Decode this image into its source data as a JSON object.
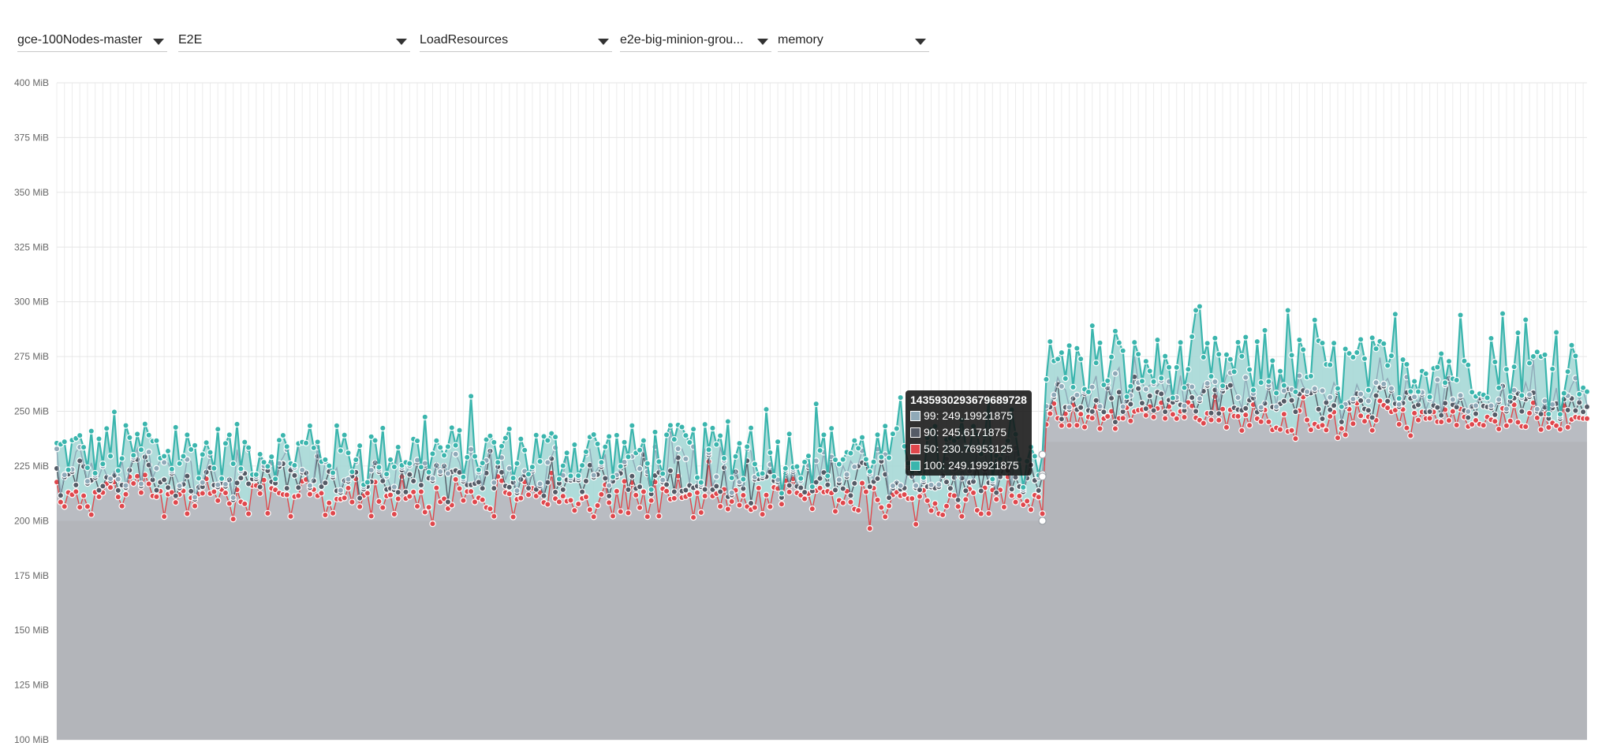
{
  "filters": [
    {
      "value": "gce-100Nodes-master"
    },
    {
      "value": "E2E"
    },
    {
      "value": "LoadResources"
    },
    {
      "value": "e2e-big-minion-grou..."
    },
    {
      "value": "memory"
    }
  ],
  "tooltip": {
    "title": "1435930293679689728",
    "rows": [
      {
        "label": "99: 249.19921875",
        "color": "#8fa9b8"
      },
      {
        "label": "90: 245.6171875",
        "color": "#555b66"
      },
      {
        "label": "50: 230.76953125",
        "color": "#e0474c"
      },
      {
        "label": "100: 249.19921875",
        "color": "#3ab5ad"
      }
    ]
  },
  "chart_data": {
    "type": "line",
    "y_unit": "MiB",
    "ylim": [
      100,
      400
    ],
    "yticks": [
      "100 MiB",
      "125 MiB",
      "150 MiB",
      "175 MiB",
      "200 MiB",
      "225 MiB",
      "250 MiB",
      "275 MiB",
      "300 MiB",
      "325 MiB",
      "350 MiB",
      "375 MiB",
      "400 MiB"
    ],
    "grid": true,
    "num_points": 400,
    "step_index": 258,
    "series": [
      {
        "name": "100",
        "color": "#3ab5ad",
        "segments": [
          {
            "from": 0,
            "to": 257,
            "range": [
              212,
              258
            ]
          },
          {
            "from": 258,
            "to": 399,
            "range": [
              248,
              300
            ]
          }
        ]
      },
      {
        "name": "99",
        "color": "#8fa9b8",
        "segments": [
          {
            "from": 0,
            "to": 257,
            "range": [
              210,
              245
            ]
          },
          {
            "from": 258,
            "to": 399,
            "range": [
              246,
              275
            ]
          }
        ]
      },
      {
        "name": "90",
        "color": "#555b66",
        "segments": [
          {
            "from": 0,
            "to": 257,
            "range": [
              208,
              240
            ]
          },
          {
            "from": 258,
            "to": 399,
            "range": [
              245,
              270
            ]
          }
        ]
      },
      {
        "name": "50",
        "color": "#e0474c",
        "segments": [
          {
            "from": 0,
            "to": 257,
            "range": [
              196,
              232
            ]
          },
          {
            "from": 258,
            "to": 399,
            "range": [
              236,
              268
            ]
          }
        ]
      }
    ],
    "baseline": [
      {
        "from": 0,
        "to": 257,
        "value": 200
      },
      {
        "from": 258,
        "to": 399,
        "value": 236
      }
    ],
    "highlight_x": 257
  }
}
